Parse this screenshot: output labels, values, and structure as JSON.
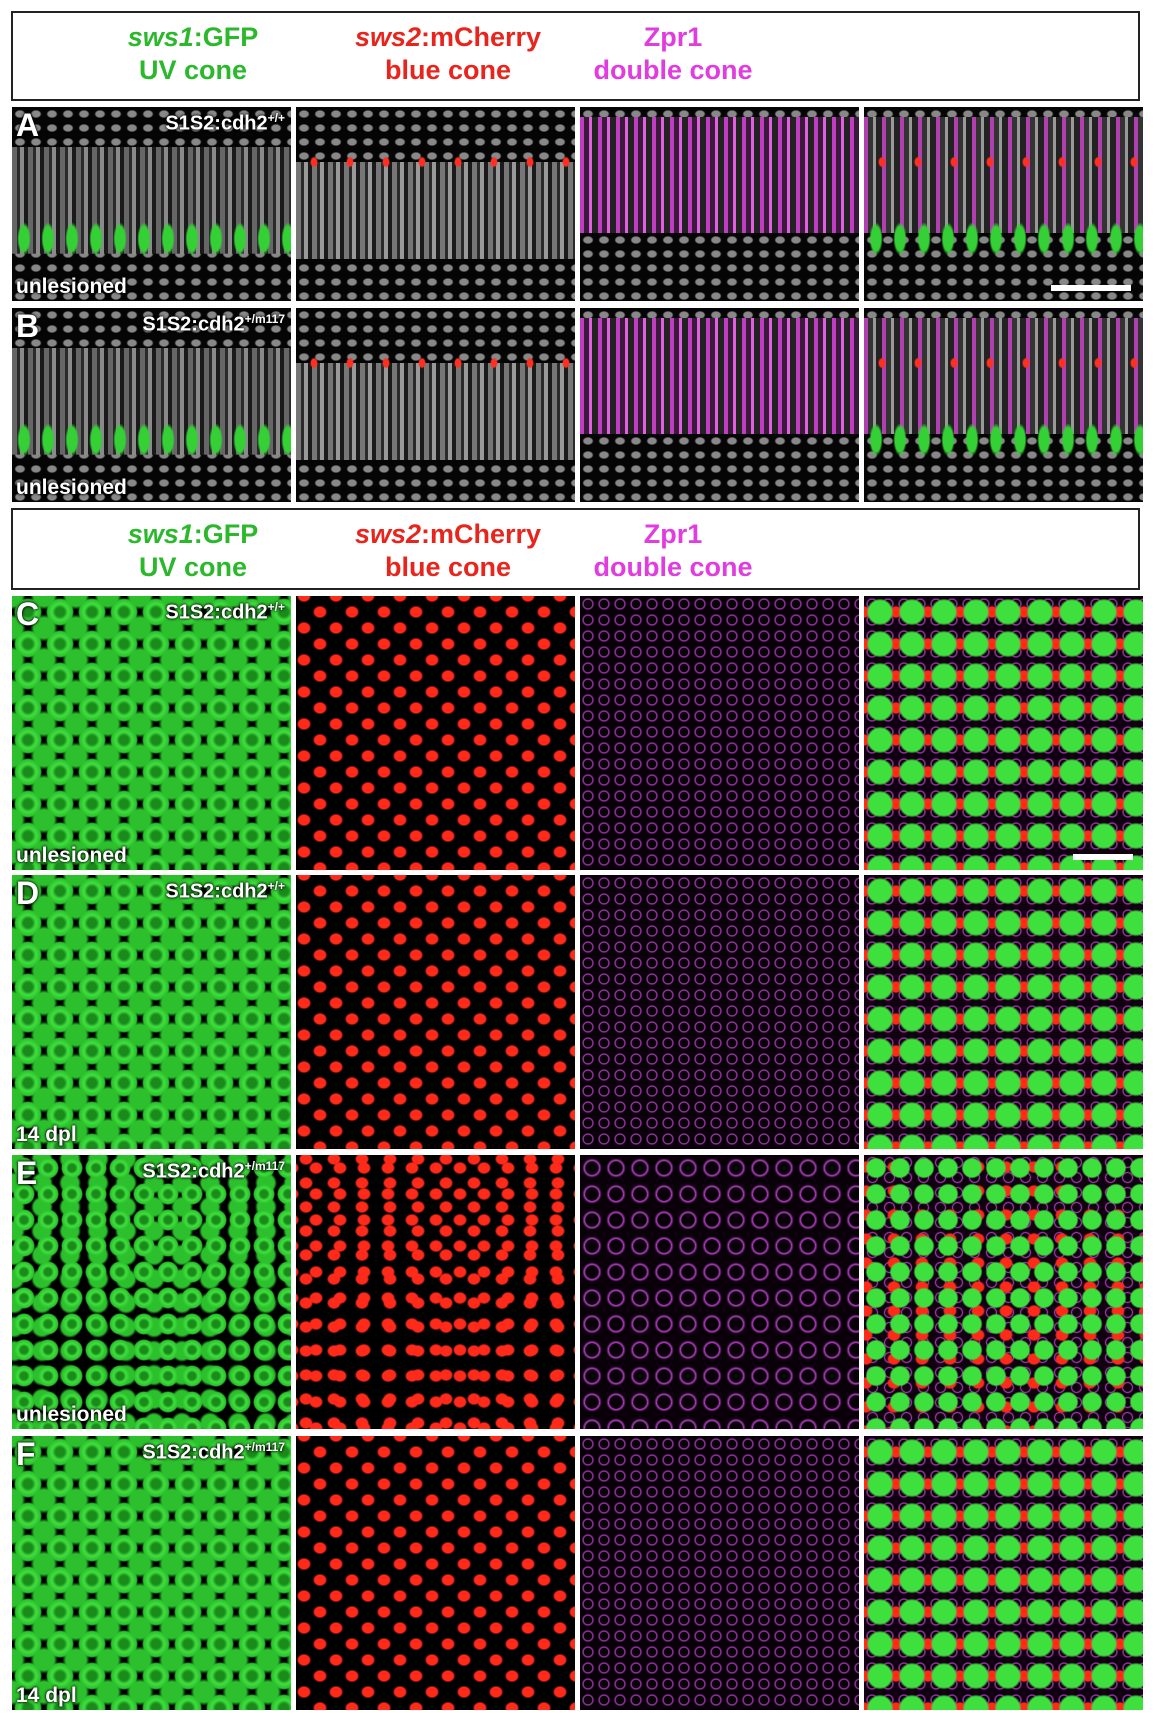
{
  "sections": [
    {
      "header": [
        {
          "gene": "sws1",
          "marker": ":GFP",
          "cell": "UV cone"
        },
        {
          "gene": "sws2",
          "marker": ":mCherry",
          "cell": "blue cone"
        },
        {
          "gene": "Zpr1",
          "cell": "double cone"
        }
      ],
      "rows": [
        {
          "panel": "A",
          "genotype": "S1S2:cdh2",
          "allele": "+/+",
          "condition": "unlesioned"
        },
        {
          "panel": "B",
          "genotype": "S1S2:cdh2",
          "allele": "+/m117",
          "condition": "unlesioned"
        }
      ]
    },
    {
      "header": [
        {
          "gene": "sws1",
          "marker": ":GFP",
          "cell": "UV cone"
        },
        {
          "gene": "sws2",
          "marker": ":mCherry",
          "cell": "blue cone"
        },
        {
          "gene": "Zpr1",
          "cell": "double cone"
        }
      ],
      "rows": [
        {
          "panel": "C",
          "genotype": "S1S2:cdh2",
          "allele": "+/+",
          "condition": "unlesioned"
        },
        {
          "panel": "D",
          "genotype": "S1S2:cdh2",
          "allele": "+/+",
          "condition": "14 dpl"
        },
        {
          "panel": "E",
          "genotype": "S1S2:cdh2",
          "allele": "+/m117",
          "condition": "unlesioned"
        },
        {
          "panel": "F",
          "genotype": "S1S2:cdh2",
          "allele": "+/m117",
          "condition": "14 dpl"
        }
      ]
    }
  ]
}
